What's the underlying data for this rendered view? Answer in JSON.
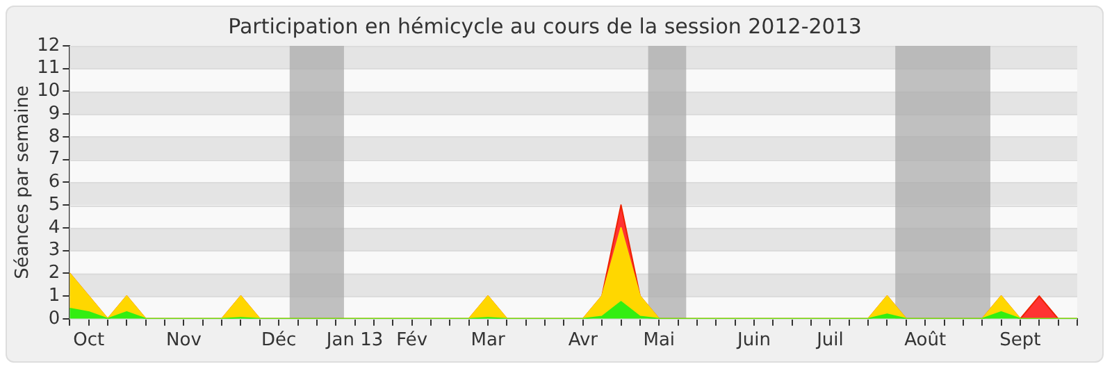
{
  "chart_data": {
    "type": "area",
    "stacked": true,
    "title": "Participation en hémicycle au cours de la session 2012-2013",
    "ylabel": "Séances par semaine",
    "x": [
      "2012-10-01",
      "2012-10-08",
      "2012-10-15",
      "2012-10-22",
      "2012-10-29",
      "2012-11-05",
      "2012-11-12",
      "2012-11-19",
      "2012-11-26",
      "2012-12-03",
      "2012-12-10",
      "2012-12-17",
      "2012-12-24",
      "2012-12-31",
      "2013-01-07",
      "2013-01-14",
      "2013-01-21",
      "2013-01-28",
      "2013-02-04",
      "2013-02-11",
      "2013-02-18",
      "2013-02-25",
      "2013-03-04",
      "2013-03-11",
      "2013-03-18",
      "2013-03-25",
      "2013-04-01",
      "2013-04-08",
      "2013-04-15",
      "2013-04-22",
      "2013-04-29",
      "2013-05-06",
      "2013-05-13",
      "2013-05-20",
      "2013-05-27",
      "2013-06-03",
      "2013-06-10",
      "2013-06-17",
      "2013-06-24",
      "2013-07-01",
      "2013-07-08",
      "2013-07-15",
      "2013-07-22",
      "2013-07-29",
      "2013-08-05",
      "2013-08-12",
      "2013-08-19",
      "2013-08-26",
      "2013-09-02",
      "2013-09-09",
      "2013-09-16",
      "2013-09-23",
      "2013-09-30",
      "2013-10-07"
    ],
    "series": [
      {
        "color": "#33ee11",
        "values": [
          0.45,
          0.3,
          0,
          0.3,
          0,
          0,
          0,
          0,
          0,
          0.05,
          0,
          0,
          0,
          0,
          0,
          0,
          0,
          0,
          0,
          0,
          0,
          0,
          0.05,
          0,
          0,
          0,
          0,
          0,
          0.1,
          0.75,
          0.1,
          0,
          0,
          0,
          0,
          0,
          0,
          0,
          0,
          0,
          0,
          0,
          0,
          0.2,
          0,
          0,
          0,
          0,
          0,
          0.3,
          0,
          0,
          0,
          0
        ]
      },
      {
        "color": "#ffd700",
        "values": [
          1.55,
          0.7,
          0,
          0.7,
          0,
          0,
          0,
          0,
          0,
          0.95,
          0,
          0,
          0,
          0,
          0,
          0,
          0,
          0,
          0,
          0,
          0,
          0,
          0.95,
          0,
          0,
          0,
          0,
          0,
          0.9,
          3.25,
          0.9,
          0,
          0,
          0,
          0,
          0,
          0,
          0,
          0,
          0,
          0,
          0,
          0,
          0.8,
          0,
          0,
          0,
          0,
          0,
          0.7,
          0,
          0,
          0,
          0
        ]
      },
      {
        "color": "#ff3333",
        "values": [
          0,
          0,
          0,
          0,
          0,
          0,
          0,
          0,
          0,
          0,
          0,
          0,
          0,
          0,
          0,
          0,
          0,
          0,
          0,
          0,
          0,
          0,
          0,
          0,
          0,
          0,
          0,
          0,
          0,
          1,
          0,
          0,
          0,
          0,
          0,
          0,
          0,
          0,
          0,
          0,
          0,
          0,
          0,
          0,
          0,
          0,
          0,
          0,
          0,
          0,
          0,
          1,
          0,
          0
        ]
      }
    ],
    "xlim": [
      "2012-10-01",
      "2013-10-07"
    ],
    "xticks": [
      {
        "value": "2012-10-01",
        "label": null
      },
      {
        "value": "2012-10-08",
        "label": "Oct"
      },
      {
        "value": "2012-10-15",
        "label": null
      },
      {
        "value": "2012-10-22",
        "label": null
      },
      {
        "value": "2012-10-29",
        "label": null
      },
      {
        "value": "2012-11-05",
        "label": null
      },
      {
        "value": "2012-11-12",
        "label": "Nov"
      },
      {
        "value": "2012-11-19",
        "label": null
      },
      {
        "value": "2012-11-26",
        "label": null
      },
      {
        "value": "2012-12-03",
        "label": null
      },
      {
        "value": "2012-12-10",
        "label": null
      },
      {
        "value": "2012-12-17",
        "label": "Déc"
      },
      {
        "value": "2012-12-24",
        "label": null
      },
      {
        "value": "2012-12-31",
        "label": null
      },
      {
        "value": "2013-01-07",
        "label": null
      },
      {
        "value": "2013-01-14",
        "label": "Jan 13"
      },
      {
        "value": "2013-01-21",
        "label": null
      },
      {
        "value": "2013-01-28",
        "label": null
      },
      {
        "value": "2013-02-04",
        "label": "Fév"
      },
      {
        "value": "2013-02-11",
        "label": null
      },
      {
        "value": "2013-02-18",
        "label": null
      },
      {
        "value": "2013-02-25",
        "label": null
      },
      {
        "value": "2013-03-04",
        "label": "Mar"
      },
      {
        "value": "2013-03-11",
        "label": null
      },
      {
        "value": "2013-03-18",
        "label": null
      },
      {
        "value": "2013-03-25",
        "label": null
      },
      {
        "value": "2013-04-01",
        "label": null
      },
      {
        "value": "2013-04-08",
        "label": "Avr"
      },
      {
        "value": "2013-04-15",
        "label": null
      },
      {
        "value": "2013-04-22",
        "label": null
      },
      {
        "value": "2013-04-29",
        "label": null
      },
      {
        "value": "2013-05-06",
        "label": "Mai"
      },
      {
        "value": "2013-05-13",
        "label": null
      },
      {
        "value": "2013-05-20",
        "label": null
      },
      {
        "value": "2013-05-27",
        "label": null
      },
      {
        "value": "2013-06-03",
        "label": null
      },
      {
        "value": "2013-06-10",
        "label": "Juin"
      },
      {
        "value": "2013-06-17",
        "label": null
      },
      {
        "value": "2013-06-24",
        "label": null
      },
      {
        "value": "2013-07-01",
        "label": null
      },
      {
        "value": "2013-07-08",
        "label": "Juil"
      },
      {
        "value": "2013-07-15",
        "label": null
      },
      {
        "value": "2013-07-22",
        "label": null
      },
      {
        "value": "2013-07-29",
        "label": null
      },
      {
        "value": "2013-08-05",
        "label": null
      },
      {
        "value": "2013-08-12",
        "label": "Août"
      },
      {
        "value": "2013-08-19",
        "label": null
      },
      {
        "value": "2013-08-26",
        "label": null
      },
      {
        "value": "2013-09-02",
        "label": null
      },
      {
        "value": "2013-09-09",
        "label": null
      },
      {
        "value": "2013-09-16",
        "label": "Sept"
      },
      {
        "value": "2013-09-23",
        "label": null
      },
      {
        "value": "2013-09-30",
        "label": null
      },
      {
        "value": "2013-10-07",
        "label": null
      }
    ],
    "ylim": [
      0,
      12
    ],
    "yticks": [
      0,
      1,
      2,
      3,
      4,
      5,
      6,
      7,
      8,
      9,
      10,
      11,
      12
    ],
    "grid": "y",
    "legend": false,
    "bands": [
      {
        "axis": "x",
        "from": "2012-12-21",
        "to": "2013-01-10",
        "color": "#a8a8a8"
      },
      {
        "axis": "x",
        "from": "2013-05-02",
        "to": "2013-05-16",
        "color": "#a8a8a8"
      },
      {
        "axis": "x",
        "from": "2013-08-01",
        "to": "2013-09-05",
        "color": "#a8a8a8"
      }
    ]
  }
}
